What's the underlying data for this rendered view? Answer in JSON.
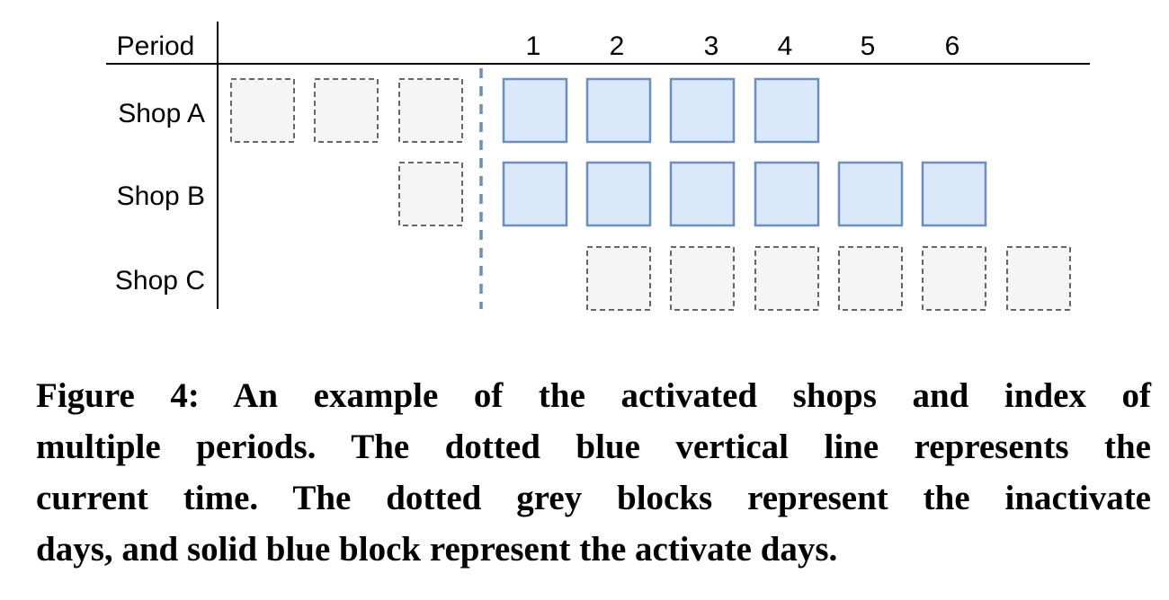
{
  "diagram": {
    "header_label": "Period",
    "period_labels": [
      "1",
      "2",
      "3",
      "4",
      "5",
      "6"
    ],
    "rows": [
      {
        "label": "Shop A",
        "inactive_before": 3,
        "active": 4,
        "inactive_after": 0,
        "after_offset": 0
      },
      {
        "label": "Shop B",
        "inactive_before": 1,
        "active": 6,
        "inactive_after": 0,
        "after_offset": 0
      },
      {
        "label": "Shop C",
        "inactive_before": 0,
        "active": 0,
        "inactive_after": 6,
        "after_offset": 1
      }
    ],
    "current_time_marker": "dotted blue vertical line",
    "colors": {
      "active_fill": "#dae8fc",
      "active_stroke": "#6c8ebf",
      "inactive_fill": "#f5f5f5",
      "inactive_stroke": "#666666",
      "current_line": "#6c8ebf",
      "axis": "#000000"
    }
  },
  "caption": {
    "lines": [
      "Figure 4: An example of the activated shops and index of",
      "multiple periods. The dotted blue vertical line represents the",
      "current time. The dotted grey blocks represent the inactivate",
      "days, and solid blue block represent the activate days."
    ]
  }
}
